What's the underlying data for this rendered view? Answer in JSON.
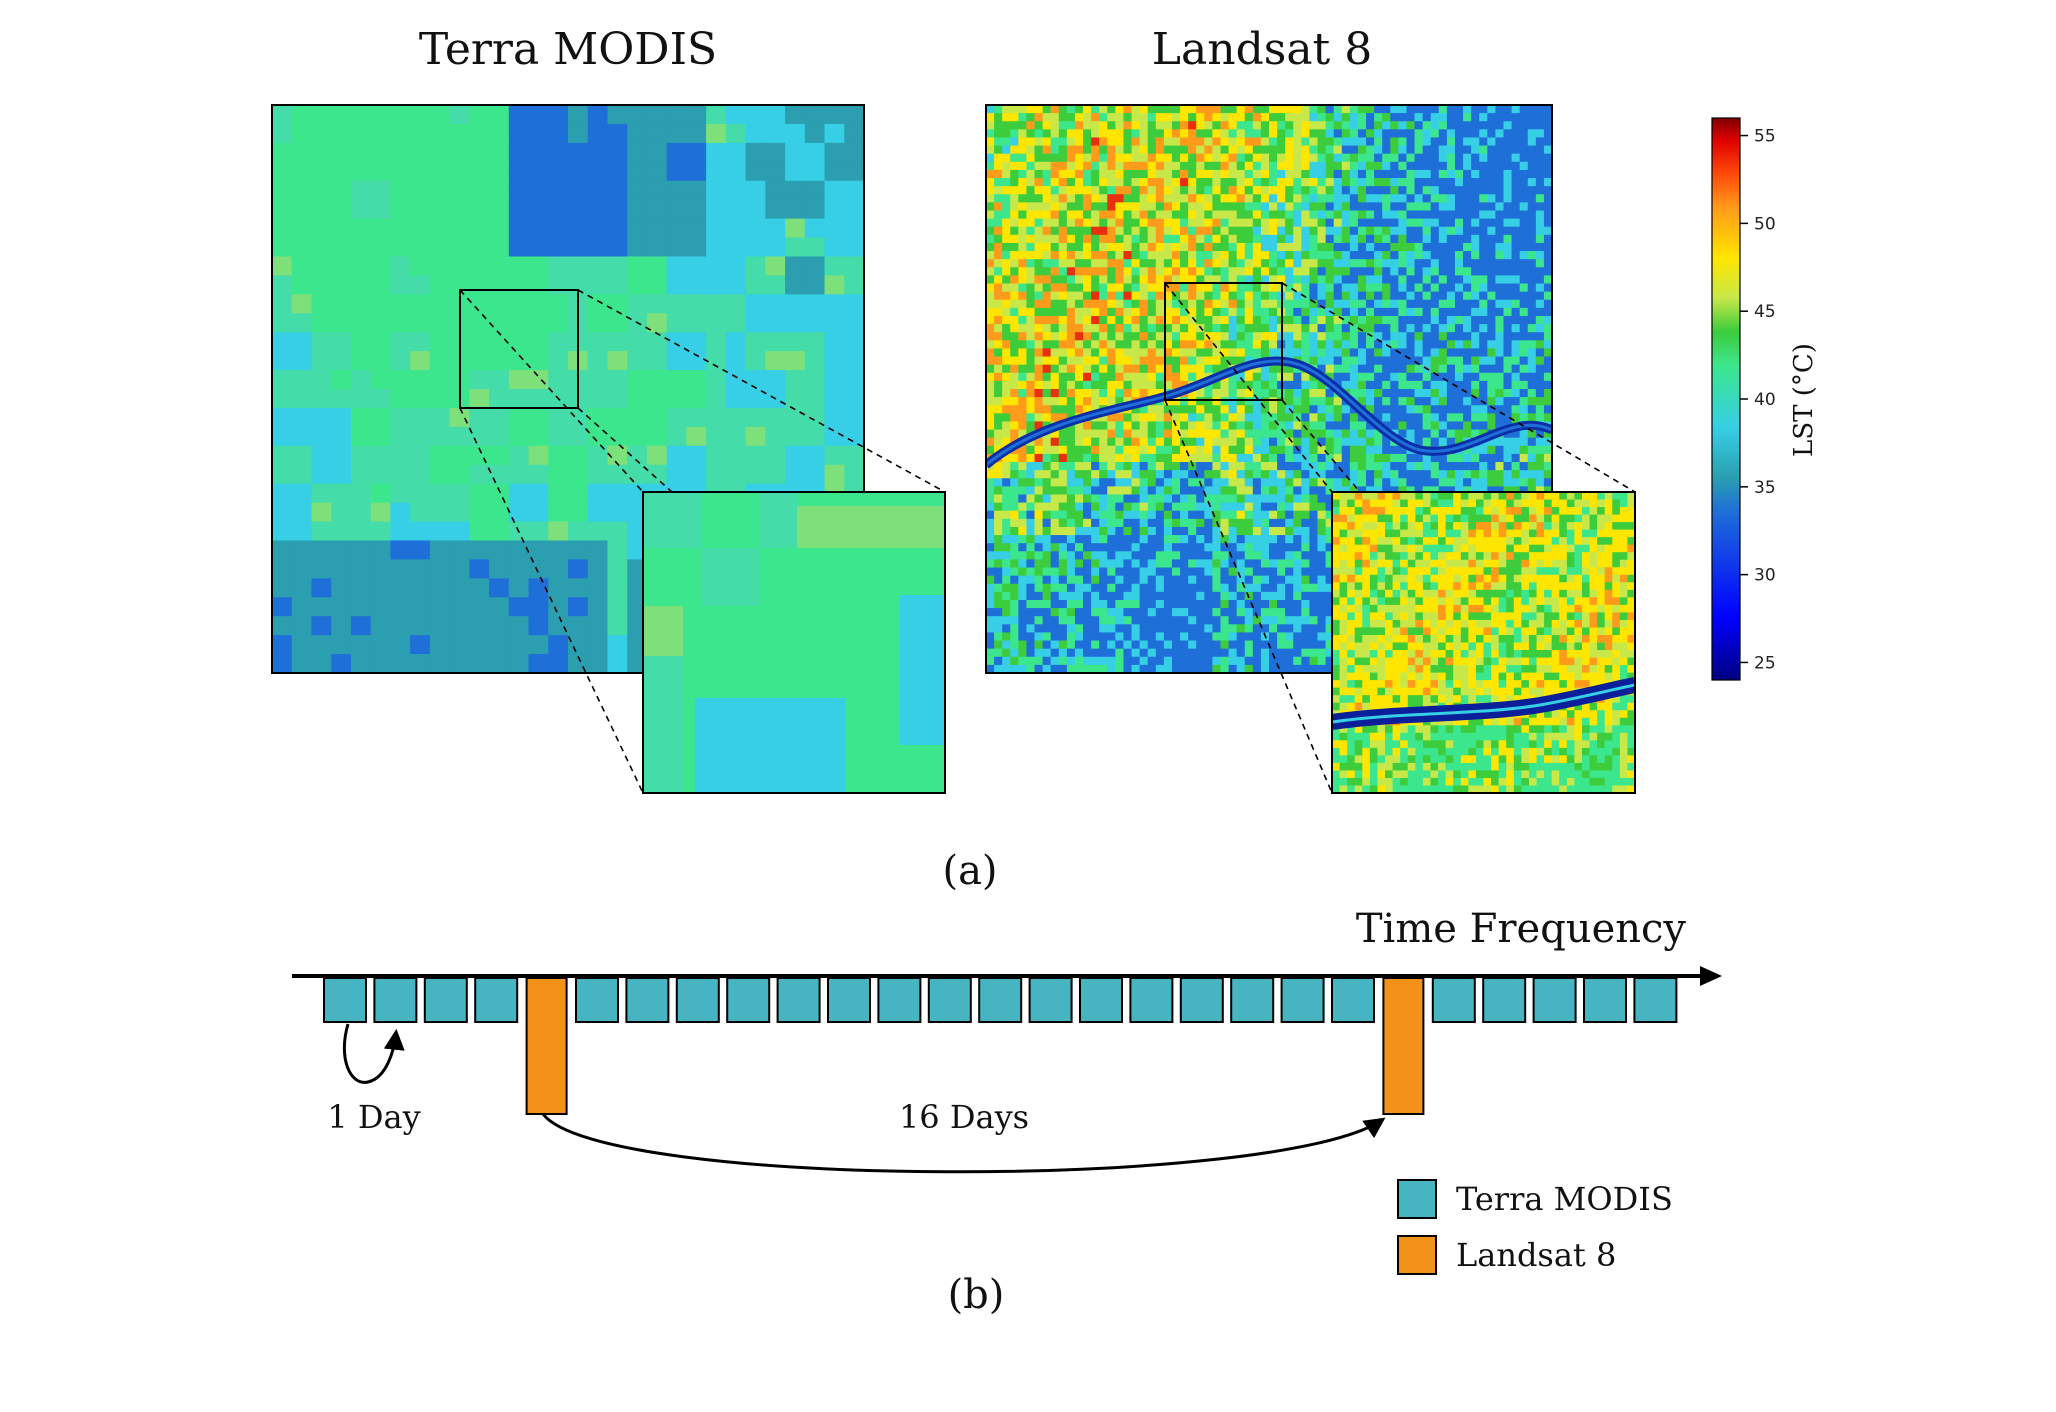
{
  "panel_a": {
    "left_title": "Terra MODIS",
    "right_title": "Landsat 8",
    "caption": "(a)",
    "colorbar": {
      "label": "LST (°C)",
      "min": 24,
      "max": 56,
      "ticks": [
        "25",
        "30",
        "35",
        "40",
        "45",
        "50",
        "55"
      ],
      "colormap": "jet"
    }
  },
  "panel_b": {
    "axis_label": "Time Frequency",
    "interval_short": "1 Day",
    "interval_long": "16 Days",
    "caption": "(b)",
    "colors": {
      "modis": "#47b4c1",
      "landsat": "#f39218"
    },
    "legend": {
      "modis_label": "Terra MODIS",
      "landsat_label": "Landsat 8"
    }
  }
}
